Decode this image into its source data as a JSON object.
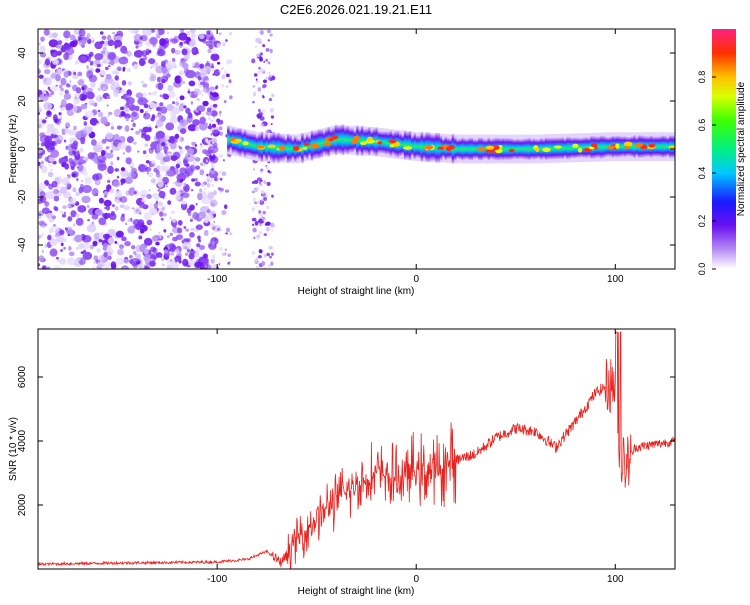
{
  "title": "C2E6.2026.021.19.21.E11",
  "colors": {
    "snr_line": "#e8231f",
    "spectrum_base": "#7a2cf0",
    "axis": "#000000"
  },
  "chart_data": [
    {
      "type": "heatmap",
      "xlabel": "Height of straight line (km)",
      "ylabel": "Frequency (Hz)",
      "xlim": [
        -190,
        130
      ],
      "ylim": [
        -50,
        50
      ],
      "xticks": [
        -100,
        0,
        100
      ],
      "yticks": [
        -40,
        -20,
        0,
        20,
        40
      ],
      "colorbar": {
        "label": "Normalized spectral amplitude",
        "range": [
          0.0,
          1.0
        ],
        "ticks": [
          "0.0",
          "0.2",
          "0.4",
          "0.6",
          "0.8"
        ],
        "colormap": "rainbow"
      },
      "regions": [
        {
          "name": "noise",
          "x_range": [
            -190,
            -95
          ],
          "description": "scattered purple speckle across all frequencies"
        },
        {
          "name": "noise-strip",
          "x_range": [
            -82,
            -72
          ]
        },
        {
          "name": "signal-band",
          "x_range": [
            -95,
            130
          ],
          "center_freq_hz": 0,
          "half_width_hz": 4
        }
      ],
      "band_center": [
        [
          -95,
          4
        ],
        [
          -80,
          1
        ],
        [
          -60,
          0
        ],
        [
          -40,
          4
        ],
        [
          -20,
          3
        ],
        [
          0,
          1
        ],
        [
          20,
          0
        ],
        [
          60,
          0
        ],
        [
          100,
          1
        ],
        [
          130,
          1
        ]
      ]
    },
    {
      "type": "line",
      "xlabel": "Height of straight line (km)",
      "ylabel": "SNR (10 * v/v)",
      "xlim": [
        -190,
        130
      ],
      "ylim": [
        0,
        7500
      ],
      "xticks": [
        -100,
        0,
        100
      ],
      "yticks": [
        2000,
        4000,
        6000
      ],
      "series": [
        {
          "name": "SNR",
          "x": [
            -190,
            -160,
            -130,
            -100,
            -85,
            -75,
            -68,
            -60,
            -50,
            -40,
            -30,
            -20,
            -10,
            0,
            10,
            20,
            30,
            40,
            50,
            60,
            70,
            80,
            90,
            95,
            100,
            102,
            105,
            110,
            120,
            130
          ],
          "values": [
            150,
            180,
            200,
            220,
            300,
            550,
            200,
            900,
            1600,
            2200,
            2600,
            3000,
            2800,
            3100,
            3000,
            3400,
            3600,
            4100,
            4400,
            4300,
            3800,
            4600,
            5500,
            5700,
            5800,
            3600,
            3200,
            3800,
            3900,
            4000
          ]
        }
      ]
    }
  ]
}
